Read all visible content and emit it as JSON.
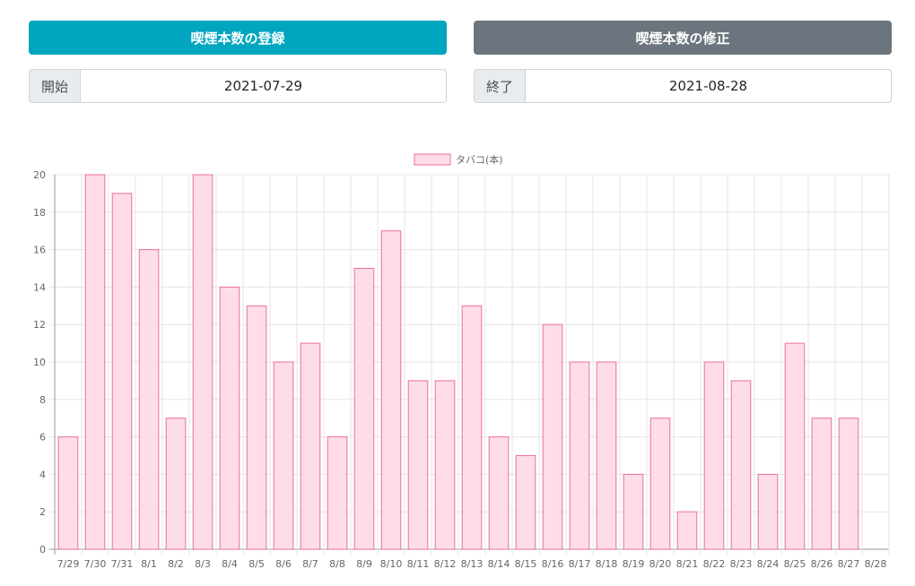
{
  "buttons": {
    "register_label": "喫煙本数の登録",
    "edit_label": "喫煙本数の修正"
  },
  "range": {
    "start_label": "開始",
    "start_value": "2021-07-29",
    "end_label": "終了",
    "end_value": "2021-08-28"
  },
  "colors": {
    "register_button": "#00a6bf",
    "edit_button": "#6c757d",
    "bar_fill": "#ffdde7",
    "bar_border": "#ec6f93"
  },
  "chart_data": {
    "type": "bar",
    "categories": [
      "7/29",
      "7/30",
      "7/31",
      "8/1",
      "8/2",
      "8/3",
      "8/4",
      "8/5",
      "8/6",
      "8/7",
      "8/8",
      "8/9",
      "8/10",
      "8/11",
      "8/12",
      "8/13",
      "8/14",
      "8/15",
      "8/16",
      "8/17",
      "8/18",
      "8/19",
      "8/20",
      "8/21",
      "8/22",
      "8/23",
      "8/24",
      "8/25",
      "8/26",
      "8/27",
      "8/28"
    ],
    "series": [
      {
        "name": "タバコ(本)",
        "values": [
          6,
          20,
          19,
          16,
          7,
          20,
          14,
          13,
          10,
          11,
          6,
          15,
          17,
          9,
          9,
          13,
          6,
          5,
          12,
          10,
          10,
          4,
          7,
          2,
          10,
          9,
          4,
          11,
          7,
          7,
          0
        ]
      }
    ],
    "ylim": [
      0,
      20
    ],
    "yticks": [
      0,
      2,
      4,
      6,
      8,
      10,
      12,
      14,
      16,
      18,
      20
    ],
    "grid": true,
    "legend_position": "top-center"
  }
}
